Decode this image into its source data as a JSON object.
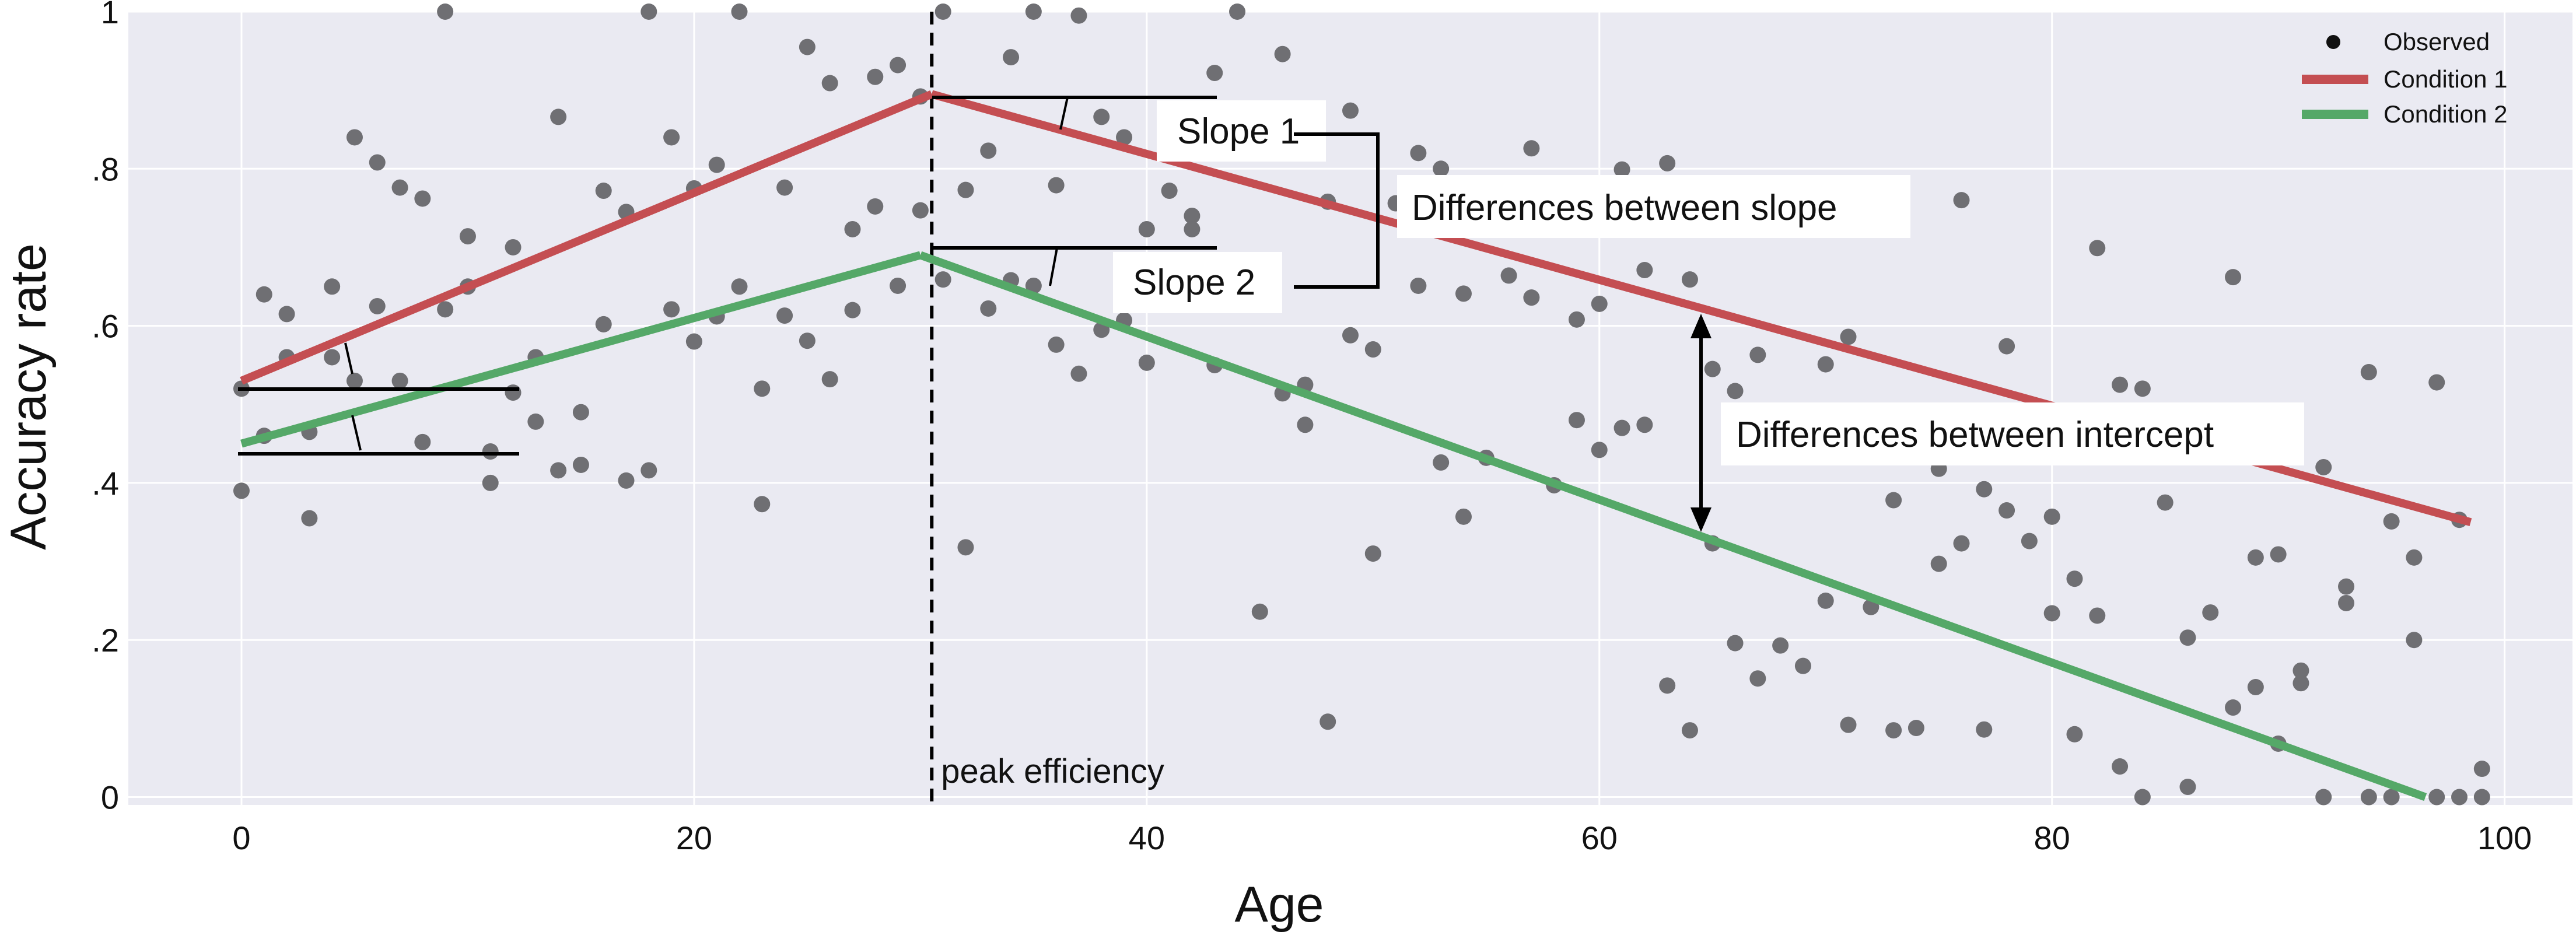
{
  "chart_data": {
    "type": "scatter",
    "title": "",
    "xlabel": "Age",
    "ylabel": "Accuracy rate",
    "xlim": [
      -5,
      103
    ],
    "ylim": [
      -0.01,
      1.0
    ],
    "xticks": [
      0,
      20,
      40,
      60,
      80,
      100
    ],
    "xtick_labels": [
      "0",
      "20",
      "40",
      "60",
      "80",
      "100"
    ],
    "yticks": [
      0,
      0.2,
      0.4,
      0.6,
      0.8,
      1.0
    ],
    "ytick_labels": [
      "0",
      ".2",
      ".4",
      ".6",
      ".8",
      "1"
    ],
    "grid": true,
    "legend_position": "top-right",
    "colors": {
      "background": "#eaeaf2",
      "grid": "#ffffff",
      "observed": "#6f6f73",
      "condition1": "#c44e52",
      "condition2": "#55a868"
    },
    "legend": [
      {
        "label": "Observed",
        "marker": "dot"
      },
      {
        "label": "Condition 1",
        "marker": "line",
        "color": "#c44e52"
      },
      {
        "label": "Condition 2",
        "marker": "line",
        "color": "#55a868"
      }
    ],
    "peak_line": {
      "x": 30.5,
      "label": "peak efficiency"
    },
    "series": [
      {
        "name": "Condition 1",
        "type": "line",
        "x": [
          0,
          30.5,
          98.5
        ],
        "y": [
          0.53,
          0.895,
          0.35
        ],
        "color": "#c44e52"
      },
      {
        "name": "Condition 2",
        "type": "line",
        "x": [
          0,
          30,
          96.5
        ],
        "y": [
          0.45,
          0.69,
          0.0
        ],
        "color": "#55a868"
      }
    ],
    "observed": [
      [
        0,
        0.52
      ],
      [
        0,
        0.39
      ],
      [
        1,
        0.64
      ],
      [
        1,
        0.46
      ],
      [
        2,
        0.615
      ],
      [
        2,
        0.56
      ],
      [
        3,
        0.355
      ],
      [
        3,
        0.465
      ],
      [
        4,
        0.65
      ],
      [
        4,
        0.56
      ],
      [
        5,
        0.84
      ],
      [
        5,
        0.53
      ],
      [
        6,
        0.808
      ],
      [
        6,
        0.625
      ],
      [
        7,
        0.776
      ],
      [
        7,
        0.53
      ],
      [
        8,
        0.762
      ],
      [
        8,
        0.452
      ],
      [
        9,
        1.0
      ],
      [
        9,
        0.621
      ],
      [
        10,
        0.714
      ],
      [
        10,
        0.65
      ],
      [
        11,
        0.44
      ],
      [
        11,
        0.4
      ],
      [
        12,
        0.7
      ],
      [
        12,
        0.515
      ],
      [
        13,
        0.56
      ],
      [
        13,
        0.478
      ],
      [
        14,
        0.866
      ],
      [
        14,
        0.416
      ],
      [
        15,
        0.49
      ],
      [
        15,
        0.423
      ],
      [
        16,
        0.772
      ],
      [
        16,
        0.602
      ],
      [
        17,
        0.745
      ],
      [
        17,
        0.403
      ],
      [
        18,
        1.0
      ],
      [
        18,
        0.416
      ],
      [
        19,
        0.84
      ],
      [
        19,
        0.621
      ],
      [
        20,
        0.775
      ],
      [
        20,
        0.58
      ],
      [
        21,
        0.805
      ],
      [
        21,
        0.612
      ],
      [
        22,
        1.0
      ],
      [
        22,
        0.65
      ],
      [
        23,
        0.52
      ],
      [
        23,
        0.373
      ],
      [
        24,
        0.776
      ],
      [
        24,
        0.613
      ],
      [
        25,
        0.955
      ],
      [
        25,
        0.581
      ],
      [
        26,
        0.909
      ],
      [
        26,
        0.532
      ],
      [
        27,
        0.723
      ],
      [
        27,
        0.62
      ],
      [
        28,
        0.917
      ],
      [
        28,
        0.752
      ],
      [
        29,
        0.932
      ],
      [
        29,
        0.651
      ],
      [
        30,
        0.892
      ],
      [
        30,
        0.747
      ],
      [
        31,
        1.0
      ],
      [
        31,
        0.659
      ],
      [
        32,
        0.773
      ],
      [
        32,
        0.318
      ],
      [
        33,
        0.823
      ],
      [
        33,
        0.622
      ],
      [
        34,
        0.942
      ],
      [
        34,
        0.658
      ],
      [
        35,
        1.0
      ],
      [
        35,
        0.651
      ],
      [
        36,
        0.779
      ],
      [
        36,
        0.576
      ],
      [
        37,
        0.995
      ],
      [
        37,
        0.539
      ],
      [
        38,
        0.866
      ],
      [
        38,
        0.595
      ],
      [
        39,
        0.84
      ],
      [
        39,
        0.607
      ],
      [
        40,
        0.723
      ],
      [
        40,
        0.553
      ],
      [
        41,
        0.772
      ],
      [
        42,
        0.74
      ],
      [
        42,
        0.723
      ],
      [
        43,
        0.922
      ],
      [
        43,
        0.55
      ],
      [
        44,
        1.0
      ],
      [
        45,
        0.236
      ],
      [
        46,
        0.946
      ],
      [
        46,
        0.514
      ],
      [
        47,
        0.525
      ],
      [
        47,
        0.474
      ],
      [
        48,
        0.758
      ],
      [
        48,
        0.096
      ],
      [
        49,
        0.874
      ],
      [
        49,
        0.588
      ],
      [
        50,
        0.31
      ],
      [
        50,
        0.57
      ],
      [
        51,
        0.756
      ],
      [
        52,
        0.82
      ],
      [
        52,
        0.651
      ],
      [
        53,
        0.8
      ],
      [
        53,
        0.426
      ],
      [
        54,
        0.641
      ],
      [
        54,
        0.357
      ],
      [
        55,
        0.432
      ],
      [
        56,
        0.664
      ],
      [
        57,
        0.826
      ],
      [
        57,
        0.636
      ],
      [
        58,
        0.397
      ],
      [
        59,
        0.608
      ],
      [
        59,
        0.48
      ],
      [
        60,
        0.628
      ],
      [
        60,
        0.442
      ],
      [
        61,
        0.799
      ],
      [
        61,
        0.47
      ],
      [
        62,
        0.671
      ],
      [
        62,
        0.474
      ],
      [
        63,
        0.807
      ],
      [
        63,
        0.142
      ],
      [
        64,
        0.659
      ],
      [
        64,
        0.085
      ],
      [
        65,
        0.545
      ],
      [
        65,
        0.323
      ],
      [
        66,
        0.517
      ],
      [
        66,
        0.196
      ],
      [
        67,
        0.563
      ],
      [
        67,
        0.151
      ],
      [
        68,
        0.193
      ],
      [
        69,
        0.167
      ],
      [
        70,
        0.551
      ],
      [
        70,
        0.25
      ],
      [
        71,
        0.586
      ],
      [
        71,
        0.092
      ],
      [
        72,
        0.242
      ],
      [
        73,
        0.378
      ],
      [
        73,
        0.085
      ],
      [
        74,
        0.088
      ],
      [
        75,
        0.418
      ],
      [
        75,
        0.297
      ],
      [
        76,
        0.76
      ],
      [
        76,
        0.323
      ],
      [
        77,
        0.392
      ],
      [
        77,
        0.086
      ],
      [
        78,
        0.574
      ],
      [
        78,
        0.365
      ],
      [
        79,
        0.326
      ],
      [
        80,
        0.357
      ],
      [
        80,
        0.234
      ],
      [
        81,
        0.278
      ],
      [
        81,
        0.08
      ],
      [
        82,
        0.699
      ],
      [
        82,
        0.231
      ],
      [
        83,
        0.525
      ],
      [
        83,
        0.039
      ],
      [
        84,
        0.52
      ],
      [
        84,
        0.0
      ],
      [
        85,
        0.375
      ],
      [
        86,
        0.203
      ],
      [
        86,
        0.013
      ],
      [
        87,
        0.235
      ],
      [
        88,
        0.662
      ],
      [
        88,
        0.114
      ],
      [
        89,
        0.305
      ],
      [
        89,
        0.14
      ],
      [
        90,
        0.309
      ],
      [
        90,
        0.068
      ],
      [
        91,
        0.161
      ],
      [
        91,
        0.145
      ],
      [
        92,
        0.42
      ],
      [
        92,
        0.0
      ],
      [
        93,
        0.268
      ],
      [
        93,
        0.247
      ],
      [
        94,
        0.541
      ],
      [
        94,
        0.0
      ],
      [
        95,
        0.351
      ],
      [
        95,
        0.0
      ],
      [
        96,
        0.305
      ],
      [
        96,
        0.2
      ],
      [
        97,
        0.528
      ],
      [
        97,
        0.0
      ],
      [
        98,
        0.353
      ],
      [
        98,
        0.0
      ],
      [
        99,
        0.036
      ],
      [
        99,
        0.0
      ]
    ],
    "annotations": {
      "slope1": "Slope 1",
      "slope2": "Slope 2",
      "slope_diff": "Differences between slope",
      "intercept_diff": "Differences between intercept"
    }
  }
}
